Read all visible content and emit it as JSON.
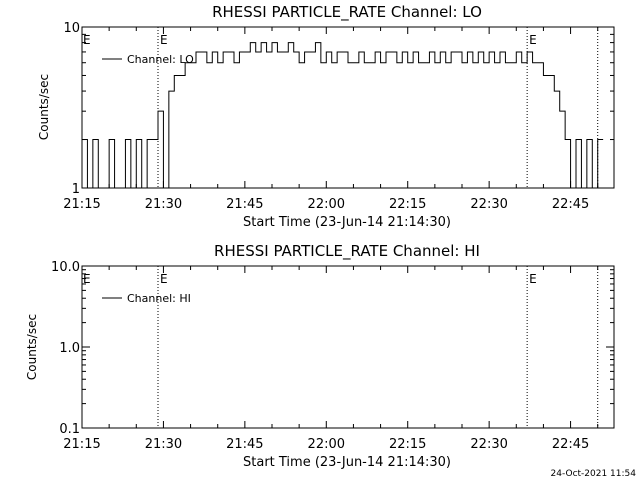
{
  "footer_timestamp": "24-Oct-2021 11:54",
  "chart_data": [
    {
      "type": "line",
      "title": "RHESSI PARTICLE_RATE Channel: LO",
      "xlabel": "Start Time (23-Jun-14 21:14:30)",
      "ylabel": "Counts/sec",
      "y_scale": "log",
      "ylim": [
        1,
        10
      ],
      "y_tick_labels": [
        "1",
        "10"
      ],
      "xlim": [
        "21:15",
        "22:53"
      ],
      "x_tick_labels": [
        "21:15",
        "21:30",
        "21:45",
        "22:00",
        "22:15",
        "22:30",
        "22:45"
      ],
      "legend": "top-left",
      "event_markers": [
        {
          "time": "21:29",
          "label": "E"
        },
        {
          "time": "22:37",
          "label": "E"
        },
        {
          "time": "22:50",
          "label": ""
        }
      ],
      "series": [
        {
          "name": "Channel: LO",
          "x": [
            "21:15",
            "21:16",
            "21:17",
            "21:18",
            "21:19",
            "21:20",
            "21:21",
            "21:22",
            "21:23",
            "21:24",
            "21:25",
            "21:26",
            "21:27",
            "21:28",
            "21:29",
            "21:30",
            "21:31",
            "21:32",
            "21:33",
            "21:34",
            "21:35",
            "21:36",
            "21:37",
            "21:38",
            "21:39",
            "21:40",
            "21:41",
            "21:42",
            "21:43",
            "21:44",
            "21:45",
            "21:46",
            "21:47",
            "21:48",
            "21:49",
            "21:50",
            "21:51",
            "21:52",
            "21:53",
            "21:54",
            "21:55",
            "21:56",
            "21:57",
            "21:58",
            "21:59",
            "22:00",
            "22:01",
            "22:02",
            "22:03",
            "22:04",
            "22:05",
            "22:06",
            "22:07",
            "22:08",
            "22:09",
            "22:10",
            "22:11",
            "22:12",
            "22:13",
            "22:14",
            "22:15",
            "22:16",
            "22:17",
            "22:18",
            "22:19",
            "22:20",
            "22:21",
            "22:22",
            "22:23",
            "22:24",
            "22:25",
            "22:26",
            "22:27",
            "22:28",
            "22:29",
            "22:30",
            "22:31",
            "22:32",
            "22:33",
            "22:34",
            "22:35",
            "22:36",
            "22:37",
            "22:38",
            "22:39",
            "22:40",
            "22:41",
            "22:42",
            "22:43",
            "22:44",
            "22:45",
            "22:46",
            "22:47",
            "22:48",
            "22:49",
            "22:50"
          ],
          "y": [
            2,
            1,
            2,
            1,
            1,
            2,
            1,
            1,
            2,
            1,
            2,
            1,
            2,
            2,
            3,
            1,
            4,
            5,
            5,
            6,
            6,
            7,
            7,
            6,
            7,
            6,
            7,
            7,
            6,
            7,
            7,
            8,
            7,
            8,
            7,
            8,
            7,
            7,
            8,
            7,
            6,
            7,
            7,
            8,
            6,
            7,
            6,
            7,
            7,
            6,
            6,
            7,
            6,
            6,
            7,
            6,
            7,
            7,
            6,
            7,
            6,
            7,
            6,
            6,
            7,
            6,
            7,
            6,
            7,
            7,
            6,
            7,
            6,
            7,
            6,
            7,
            6,
            7,
            6,
            6,
            7,
            6,
            7,
            6,
            6,
            5,
            5,
            4,
            3,
            2,
            1,
            2,
            1,
            2,
            1,
            2
          ]
        }
      ]
    },
    {
      "type": "line",
      "title": "RHESSI PARTICLE_RATE Channel: HI",
      "xlabel": "Start Time (23-Jun-14 21:14:30)",
      "ylabel": "Counts/sec",
      "y_scale": "log",
      "ylim": [
        0.1,
        10
      ],
      "y_tick_labels": [
        "0.1",
        "1.0",
        "10.0"
      ],
      "xlim": [
        "21:15",
        "22:53"
      ],
      "x_tick_labels": [
        "21:15",
        "21:30",
        "21:45",
        "22:00",
        "22:15",
        "22:30",
        "22:45"
      ],
      "legend": "top-left",
      "event_markers": [
        {
          "time": "21:29",
          "label": "E"
        },
        {
          "time": "22:37",
          "label": "E"
        },
        {
          "time": "22:50",
          "label": ""
        }
      ],
      "series": [
        {
          "name": "Channel: HI",
          "x": [],
          "y": []
        }
      ]
    }
  ]
}
